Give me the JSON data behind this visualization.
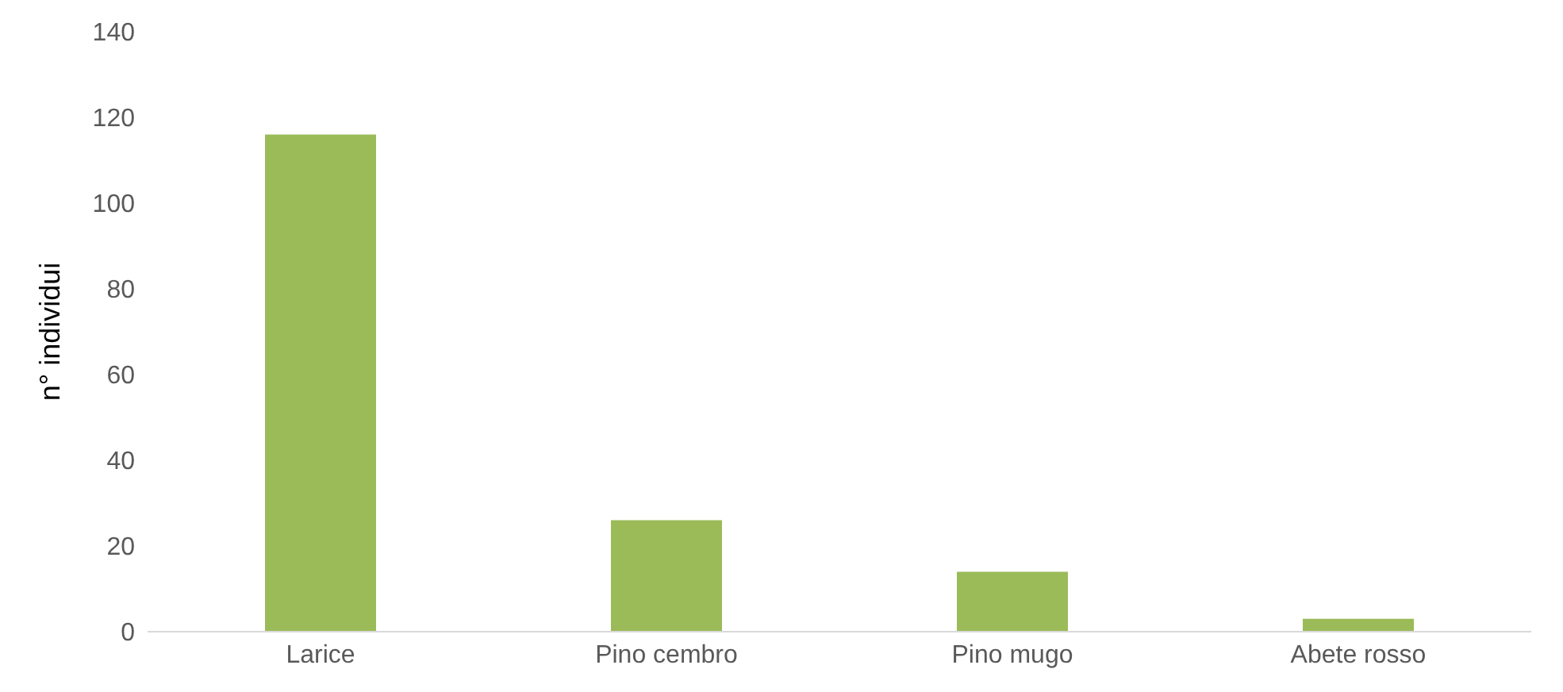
{
  "chart_data": {
    "type": "bar",
    "ylabel": "n° individui",
    "categories": [
      "Larice",
      "Pino cembro",
      "Pino mugo",
      "Abete rosso"
    ],
    "values": [
      116,
      26,
      14,
      3
    ],
    "color": "#9bbb59",
    "ylim": [
      0,
      140
    ],
    "yticks": [
      0,
      20,
      40,
      60,
      80,
      100,
      120,
      140
    ],
    "grid": false
  }
}
